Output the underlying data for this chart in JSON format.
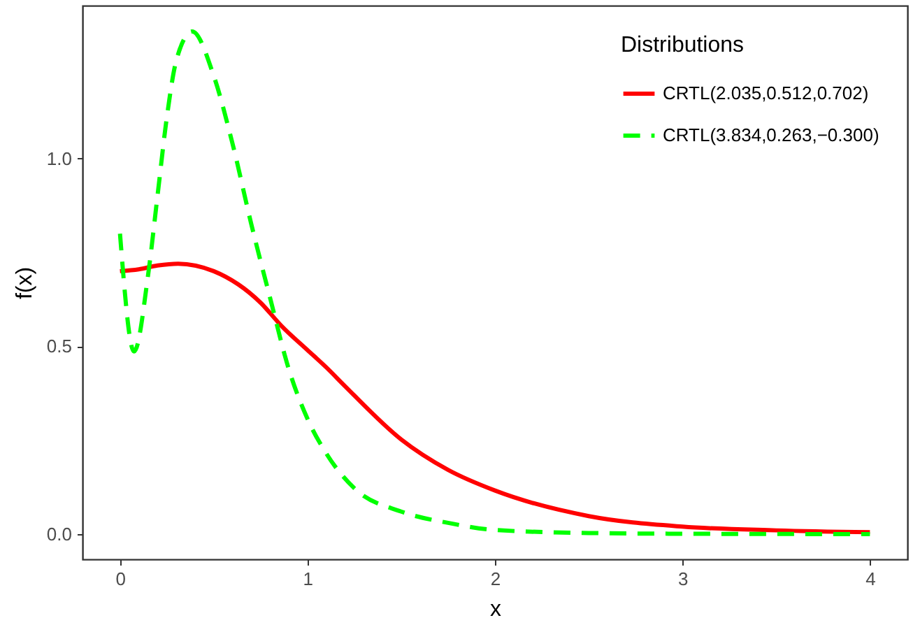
{
  "chart_data": {
    "type": "line",
    "xlabel": "x",
    "ylabel": "f(x)",
    "legend_title": "Distributions",
    "legend": "top right",
    "grid": false,
    "xlim": [
      -0.2,
      4.2
    ],
    "xticks": [
      0,
      1,
      2,
      3,
      4
    ],
    "ylim": [
      -0.067,
      1.407
    ],
    "yticks": [
      {
        "value": 0,
        "label": "0.0"
      },
      {
        "value": 0.5,
        "label": "0.5"
      },
      {
        "value": 1,
        "label": "1.0"
      }
    ],
    "series": [
      {
        "name": "CRTL(2.035,0.512,0.702)",
        "color": "#ff0000",
        "line_style": "solid",
        "x": [
          0,
          0.1,
          0.2,
          0.31,
          0.5,
          0.75,
          0.86,
          1,
          1.1,
          1.2,
          1.5,
          1.75,
          2,
          2.5,
          3,
          3.5,
          4
        ],
        "values": [
          0.7,
          0.705,
          0.715,
          0.72,
          0.7,
          0.616,
          0.555,
          0.49,
          0.444,
          0.394,
          0.252,
          0.171,
          0.116,
          0.048,
          0.02,
          0.01,
          0.005
        ]
      },
      {
        "name": "CRTL(3.834,0.263,−0.300)",
        "color": "#00ff00",
        "line_style": "dashed",
        "x": [
          0,
          0.075,
          0.15,
          0.2,
          0.25,
          0.3,
          0.385,
          0.5,
          0.6,
          0.7,
          0.8,
          0.9,
          1,
          1.1,
          1.25,
          1.5,
          1.75,
          2,
          2.5,
          3,
          4
        ],
        "values": [
          0.8,
          0.486,
          0.69,
          0.9,
          1.11,
          1.26,
          1.338,
          1.22,
          1.04,
          0.826,
          0.63,
          0.44,
          0.307,
          0.215,
          0.122,
          0.06,
          0.03,
          0.011,
          0.003,
          0.001,
          0
        ]
      }
    ]
  }
}
